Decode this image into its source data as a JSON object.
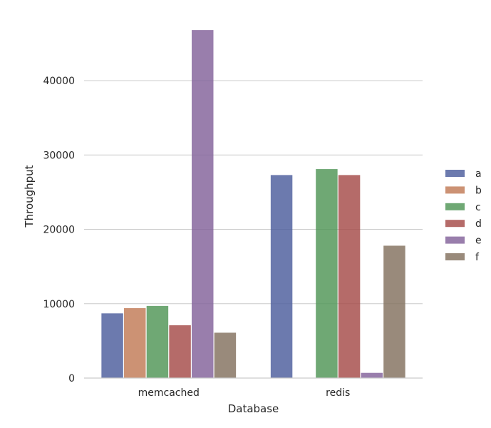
{
  "chart_data": {
    "type": "bar",
    "title": "",
    "xlabel": "Database",
    "ylabel": "Throughput",
    "categories": [
      "memcached",
      "redis"
    ],
    "ylim": [
      0,
      47000
    ],
    "yticks": [
      0,
      10000,
      20000,
      30000,
      40000
    ],
    "ytick_labels": [
      "0",
      "10000",
      "20000",
      "30000",
      "40000"
    ],
    "grid": "horizontal",
    "legend_position": "right",
    "series": [
      {
        "name": "a",
        "color": "#4c5d9c",
        "values": [
          8700,
          27300
        ]
      },
      {
        "name": "b",
        "color": "#c17a55",
        "values": [
          9400,
          0
        ]
      },
      {
        "name": "c",
        "color": "#4f9556",
        "values": [
          9700,
          28100
        ]
      },
      {
        "name": "d",
        "color": "#a54a48",
        "values": [
          7100,
          27300
        ]
      },
      {
        "name": "e",
        "color": "#82619a",
        "values": [
          46800,
          700
        ]
      },
      {
        "name": "f",
        "color": "#82705e",
        "values": [
          6100,
          17800
        ]
      }
    ]
  }
}
